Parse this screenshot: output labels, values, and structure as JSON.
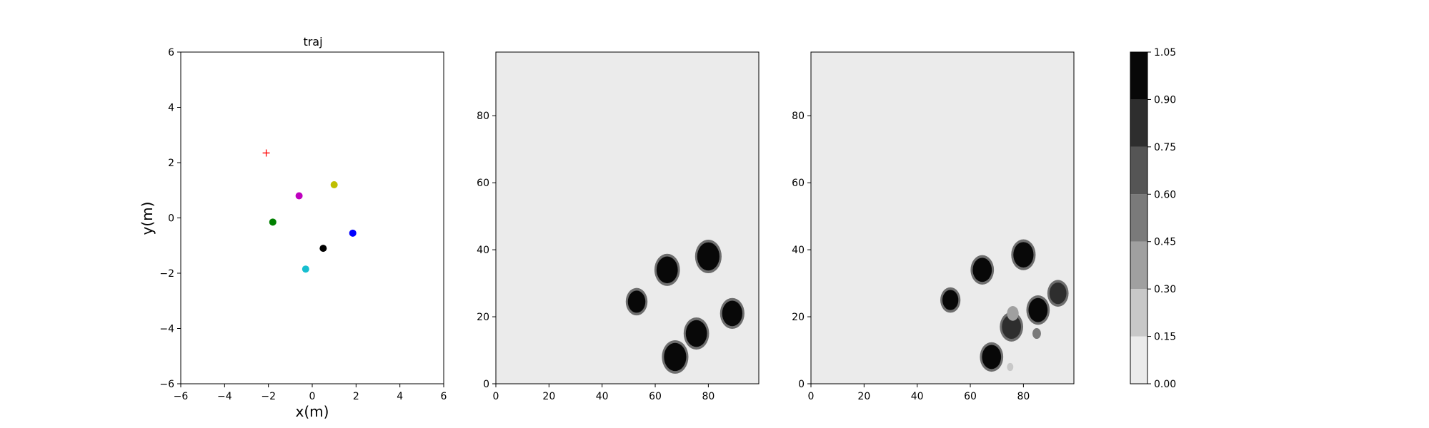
{
  "chart_data": [
    {
      "type": "scatter",
      "title": "traj",
      "xlabel": "x(m)",
      "ylabel": "y(m)",
      "xlim": [
        -6,
        6
      ],
      "ylim": [
        -6,
        6
      ],
      "xticks": [
        "−6",
        "−4",
        "−2",
        "0",
        "2",
        "4",
        "6"
      ],
      "yticks": [
        "−6",
        "−4",
        "−2",
        "0",
        "2",
        "4",
        "6"
      ],
      "target": {
        "x": -2.1,
        "y": 2.35,
        "marker": "+",
        "color": "#ff0000"
      },
      "points": [
        {
          "x": -0.6,
          "y": 0.8,
          "color": "#bf00bf"
        },
        {
          "x": 1.0,
          "y": 1.2,
          "color": "#bfbf00"
        },
        {
          "x": -1.8,
          "y": -0.15,
          "color": "#008000"
        },
        {
          "x": 1.85,
          "y": -0.55,
          "color": "#0000ff"
        },
        {
          "x": 0.5,
          "y": -1.1,
          "color": "#000000"
        },
        {
          "x": -0.3,
          "y": -1.85,
          "color": "#17becf"
        }
      ],
      "grid": false
    },
    {
      "type": "heatmap",
      "xlim": [
        0,
        99
      ],
      "ylim": [
        0,
        99
      ],
      "xticks": [
        "0",
        "20",
        "40",
        "60",
        "80"
      ],
      "yticks": [
        "0",
        "20",
        "40",
        "60",
        "80"
      ],
      "background_value": 0.0,
      "blobs": [
        {
          "x": 80,
          "y": 38,
          "r": 4.2,
          "value": 1.0
        },
        {
          "x": 64.5,
          "y": 34,
          "r": 4.0,
          "value": 1.0
        },
        {
          "x": 53,
          "y": 24.5,
          "r": 3.3,
          "value": 1.0
        },
        {
          "x": 89,
          "y": 21,
          "r": 3.8,
          "value": 1.0
        },
        {
          "x": 75.5,
          "y": 15,
          "r": 4.0,
          "value": 1.0
        },
        {
          "x": 67.5,
          "y": 8,
          "r": 4.2,
          "value": 1.0
        }
      ]
    },
    {
      "type": "heatmap",
      "xlim": [
        0,
        99
      ],
      "ylim": [
        0,
        99
      ],
      "xticks": [
        "0",
        "20",
        "40",
        "60",
        "80"
      ],
      "yticks": [
        "0",
        "20",
        "40",
        "60",
        "80"
      ],
      "background_value": 0.0,
      "blobs": [
        {
          "x": 80,
          "y": 38.5,
          "r": 3.8,
          "value": 1.0
        },
        {
          "x": 64.5,
          "y": 34,
          "r": 3.6,
          "value": 1.0
        },
        {
          "x": 52.5,
          "y": 25,
          "r": 3.0,
          "value": 1.0
        },
        {
          "x": 85.5,
          "y": 22,
          "r": 3.6,
          "value": 0.95
        },
        {
          "x": 93,
          "y": 27,
          "r": 3.2,
          "value": 0.75
        },
        {
          "x": 75.5,
          "y": 17,
          "r": 3.6,
          "value": 0.85
        },
        {
          "x": 68,
          "y": 8,
          "r": 3.6,
          "value": 1.0
        },
        {
          "x": 76,
          "y": 21,
          "r": 2.2,
          "value": 0.3
        },
        {
          "x": 85,
          "y": 15,
          "r": 1.6,
          "value": 0.45
        },
        {
          "x": 75,
          "y": 5,
          "r": 1.2,
          "value": 0.2
        }
      ]
    },
    {
      "type": "colorbar",
      "levels": [
        0.0,
        0.15,
        0.3,
        0.45,
        0.6,
        0.75,
        0.9,
        1.05
      ],
      "ticks": [
        "0.00",
        "0.15",
        "0.30",
        "0.45",
        "0.60",
        "0.75",
        "0.90",
        "1.05"
      ],
      "colors": [
        "#ebebeb",
        "#c8c8c8",
        "#a0a0a0",
        "#7a7a7a",
        "#555555",
        "#2e2e2e",
        "#080808"
      ]
    }
  ]
}
